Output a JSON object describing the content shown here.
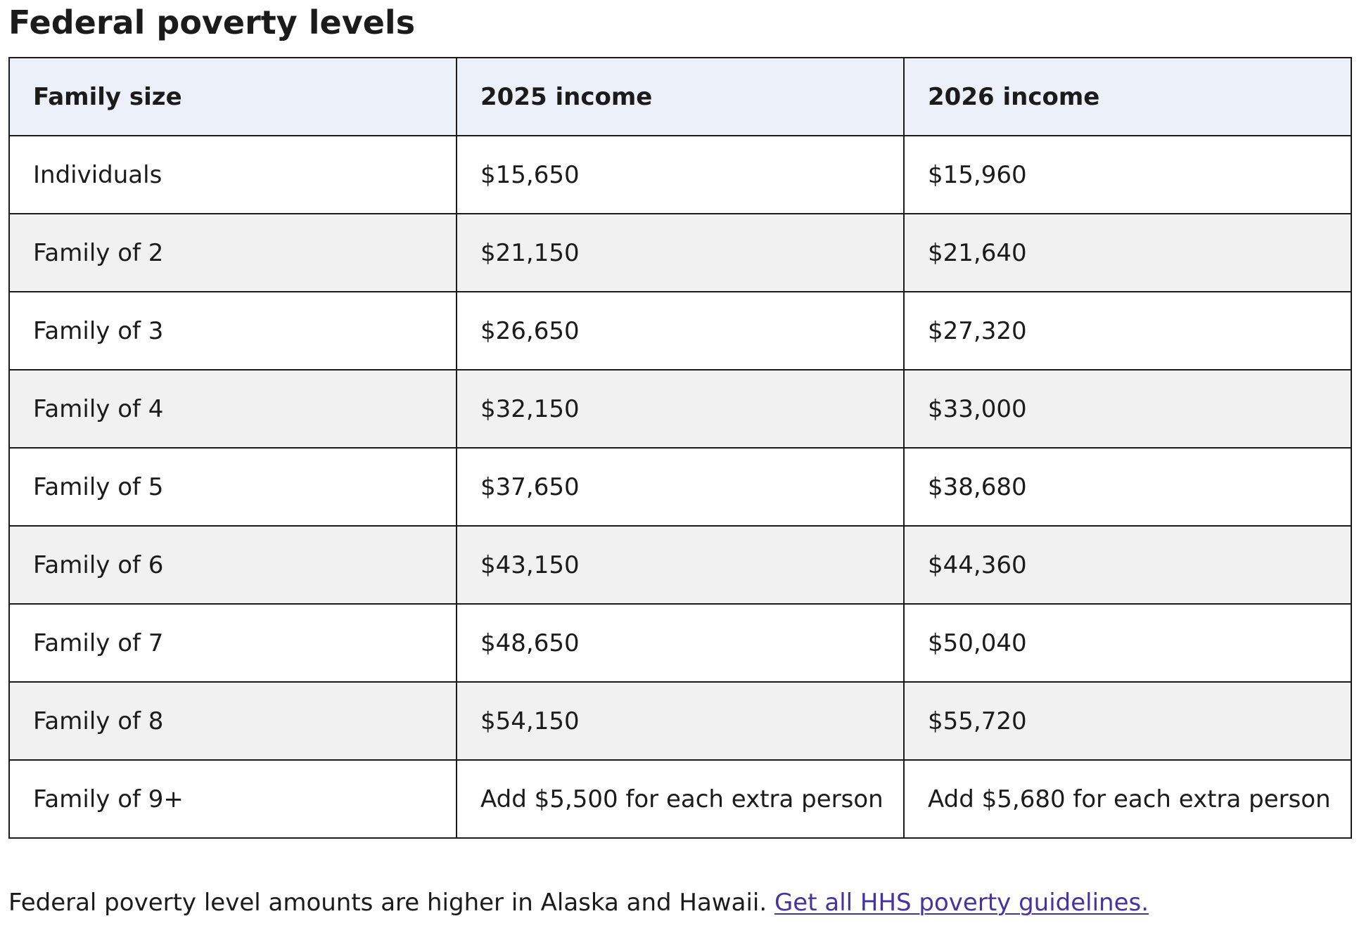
{
  "title": "Federal poverty levels",
  "table": {
    "headers": [
      "Family size",
      "2025 income",
      "2026 income"
    ],
    "rows": [
      [
        "Individuals",
        "$15,650",
        "$15,960"
      ],
      [
        "Family of 2",
        "$21,150",
        "$21,640"
      ],
      [
        "Family of 3",
        "$26,650",
        "$27,320"
      ],
      [
        "Family of 4",
        "$32,150",
        "$33,000"
      ],
      [
        "Family of 5",
        "$37,650",
        "$38,680"
      ],
      [
        "Family of 6",
        "$43,150",
        "$44,360"
      ],
      [
        "Family of 7",
        "$48,650",
        "$50,040"
      ],
      [
        "Family of 8",
        "$54,150",
        "$55,720"
      ],
      [
        "Family of 9+",
        "Add $5,500 for each extra person",
        "Add $5,680 for each extra person"
      ]
    ]
  },
  "footnote": {
    "text": "Federal poverty level amounts are higher in Alaska and Hawaii.",
    "link_text": "Get all HHS poverty guidelines."
  },
  "colors": {
    "header_background": "#ecf1f9",
    "striped_row_background": "#f1f1f1",
    "border": "#1b1b1b",
    "link": "#4632a0"
  }
}
